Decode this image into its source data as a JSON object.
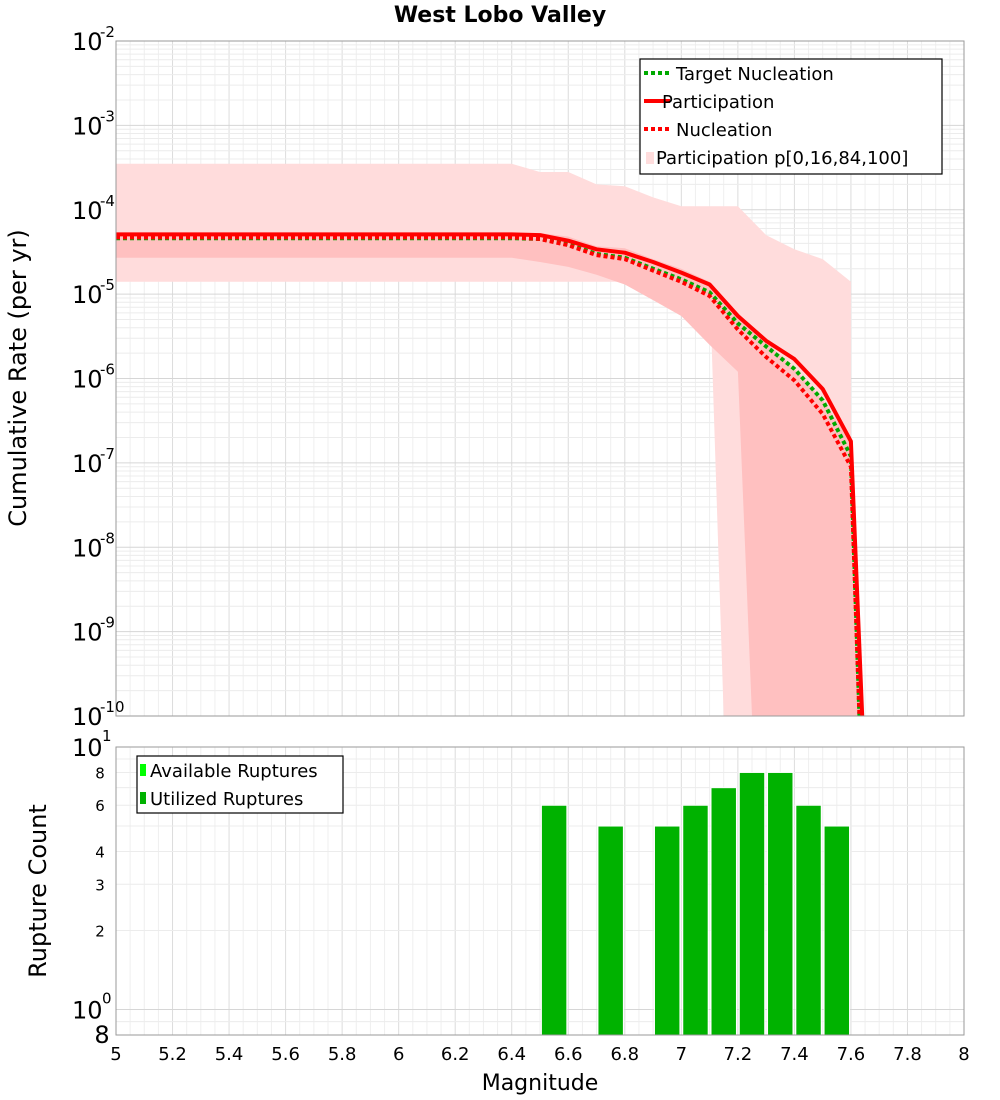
{
  "chart_data": [
    {
      "type": "line",
      "title": "West Lobo Valley",
      "ylabel": "Cumulative Rate (per yr)",
      "xlabel": "",
      "xlim": [
        5,
        8
      ],
      "ylim": [
        1e-10,
        0.01
      ],
      "yscale": "log",
      "grid": true,
      "legend_position": "top-right",
      "y_tick_labels": [
        {
          "base": "10",
          "exp": "-2",
          "value": 0.01
        },
        {
          "base": "10",
          "exp": "-3",
          "value": 0.001
        },
        {
          "base": "10",
          "exp": "-4",
          "value": 0.0001
        },
        {
          "base": "10",
          "exp": "-5",
          "value": 1e-05
        },
        {
          "base": "10",
          "exp": "-6",
          "value": 1e-06
        },
        {
          "base": "10",
          "exp": "-7",
          "value": 1e-07
        },
        {
          "base": "10",
          "exp": "-8",
          "value": 1e-08
        },
        {
          "base": "10",
          "exp": "-9",
          "value": 1e-09
        },
        {
          "base": "10",
          "exp": "-10",
          "value": 1e-10
        }
      ],
      "legend": [
        {
          "label": "Target Nucleation",
          "color": "#00aa00",
          "style": "dotted"
        },
        {
          "label": "Participation",
          "color": "#ff0000",
          "style": "solid"
        },
        {
          "label": "Nucleation",
          "color": "#ff0000",
          "style": "dotted"
        },
        {
          "label": "Participation p[0,16,84,100]",
          "color": "#ffdddd",
          "style": "band"
        }
      ],
      "bands": [
        {
          "name": "p0-p100",
          "color": "#ffdcdc",
          "x": [
            5.0,
            6.4,
            6.5,
            6.6,
            6.7,
            6.8,
            6.9,
            7.0,
            7.1,
            7.15,
            7.2,
            7.3,
            7.4,
            7.5,
            7.6,
            7.6
          ],
          "upper": [
            0.00035,
            0.00035,
            0.00028,
            0.00028,
            0.0002,
            0.00019,
            0.00014,
            0.00011,
            0.00011,
            0.00011,
            0.00011,
            5e-05,
            3.4e-05,
            2.6e-05,
            1.4e-05,
            1e-10
          ],
          "lower": [
            1.4e-05,
            1.4e-05,
            1.4e-05,
            1.4e-05,
            1.4e-05,
            1.4e-05,
            1.4e-05,
            1.4e-05,
            1.4e-05,
            1e-10,
            1e-10,
            1e-10,
            1e-10,
            1e-10,
            1e-10,
            1e-10
          ]
        },
        {
          "name": "p16-p84",
          "color": "#ffc0c0",
          "x": [
            5.0,
            6.4,
            6.5,
            6.6,
            6.7,
            6.8,
            6.9,
            7.0,
            7.1,
            7.2,
            7.25,
            7.3,
            7.4,
            7.5,
            7.6,
            7.64
          ],
          "upper": [
            5.3e-05,
            5.3e-05,
            5.3e-05,
            4.8e-05,
            3.7e-05,
            3.5e-05,
            2.6e-05,
            2e-05,
            1.4e-05,
            6e-06,
            4e-06,
            2.7e-06,
            1.3e-06,
            5.5e-07,
            1.8e-07,
            1e-10
          ],
          "lower": [
            2.7e-05,
            2.7e-05,
            2.4e-05,
            2.1e-05,
            1.7e-05,
            1.3e-05,
            8.5e-06,
            5.5e-06,
            2.5e-06,
            1.2e-06,
            1e-10,
            1e-10,
            1e-10,
            1e-10,
            1e-10,
            1e-10
          ]
        }
      ],
      "series": [
        {
          "name": "Target Nucleation",
          "color": "#00aa00",
          "style": "dotted",
          "x": [
            5.0,
            5.5,
            6.0,
            6.4,
            6.5,
            6.6,
            6.7,
            6.8,
            6.9,
            7.0,
            7.1,
            7.2,
            7.3,
            7.4,
            7.5,
            7.6,
            7.63
          ],
          "y": [
            4.6e-05,
            4.6e-05,
            4.6e-05,
            4.6e-05,
            4.5e-05,
            3.9e-05,
            3e-05,
            2.7e-05,
            2e-05,
            1.5e-05,
            1.05e-05,
            4.5e-06,
            2.4e-06,
            1.3e-06,
            5.5e-07,
            1.2e-07,
            1e-10
          ]
        },
        {
          "name": "Participation",
          "color": "#ff0000",
          "style": "solid",
          "x": [
            5.0,
            5.5,
            6.0,
            6.4,
            6.5,
            6.6,
            6.7,
            6.8,
            6.9,
            7.0,
            7.1,
            7.2,
            7.3,
            7.4,
            7.5,
            7.6,
            7.64
          ],
          "y": [
            5.1e-05,
            5.1e-05,
            5.1e-05,
            5.1e-05,
            5e-05,
            4.3e-05,
            3.4e-05,
            3.1e-05,
            2.4e-05,
            1.8e-05,
            1.3e-05,
            5.5e-06,
            2.8e-06,
            1.7e-06,
            7.5e-07,
            1.8e-07,
            1e-10
          ]
        },
        {
          "name": "Nucleation",
          "color": "#ff0000",
          "style": "dotted",
          "x": [
            5.0,
            5.5,
            6.0,
            6.4,
            6.5,
            6.6,
            6.7,
            6.8,
            6.9,
            7.0,
            7.1,
            7.2,
            7.3,
            7.4,
            7.5,
            7.6,
            7.63
          ],
          "y": [
            4.7e-05,
            4.7e-05,
            4.7e-05,
            4.7e-05,
            4.5e-05,
            3.8e-05,
            2.9e-05,
            2.6e-05,
            1.9e-05,
            1.4e-05,
            9.5e-06,
            3.8e-06,
            1.8e-06,
            9.5e-07,
            3.8e-07,
            9e-08,
            1e-10
          ]
        }
      ]
    },
    {
      "type": "bar",
      "ylabel": "Rupture Count",
      "xlabel": "Magnitude",
      "xlim": [
        5,
        8
      ],
      "ylim": [
        0.8,
        10
      ],
      "yscale": "log",
      "grid": true,
      "legend_position": "top-left",
      "x_tick_labels": [
        "5",
        "5.2",
        "5.4",
        "5.6",
        "5.8",
        "6",
        "6.2",
        "6.4",
        "6.6",
        "6.8",
        "7",
        "7.2",
        "7.4",
        "7.6",
        "7.8",
        "8"
      ],
      "y_tick_labels": [
        {
          "base": "10",
          "exp": "1",
          "value": 10
        },
        {
          "base": "10",
          "exp": "0",
          "value": 1
        }
      ],
      "y_minor_tick_labels": [
        "8",
        "6",
        "4",
        "3",
        "2"
      ],
      "y_bottom_label": "8",
      "legend": [
        {
          "label": "Available Ruptures",
          "color": "#00ff00"
        },
        {
          "label": "Utilized Ruptures",
          "color": "#00b200"
        }
      ],
      "bar_width": 0.09,
      "bar_color": "#00b200",
      "x": [
        6.55,
        6.75,
        6.95,
        7.05,
        7.15,
        7.25,
        7.35,
        7.45,
        7.55
      ],
      "values": [
        6,
        5,
        5,
        6,
        7,
        8,
        8,
        6,
        5
      ]
    }
  ]
}
